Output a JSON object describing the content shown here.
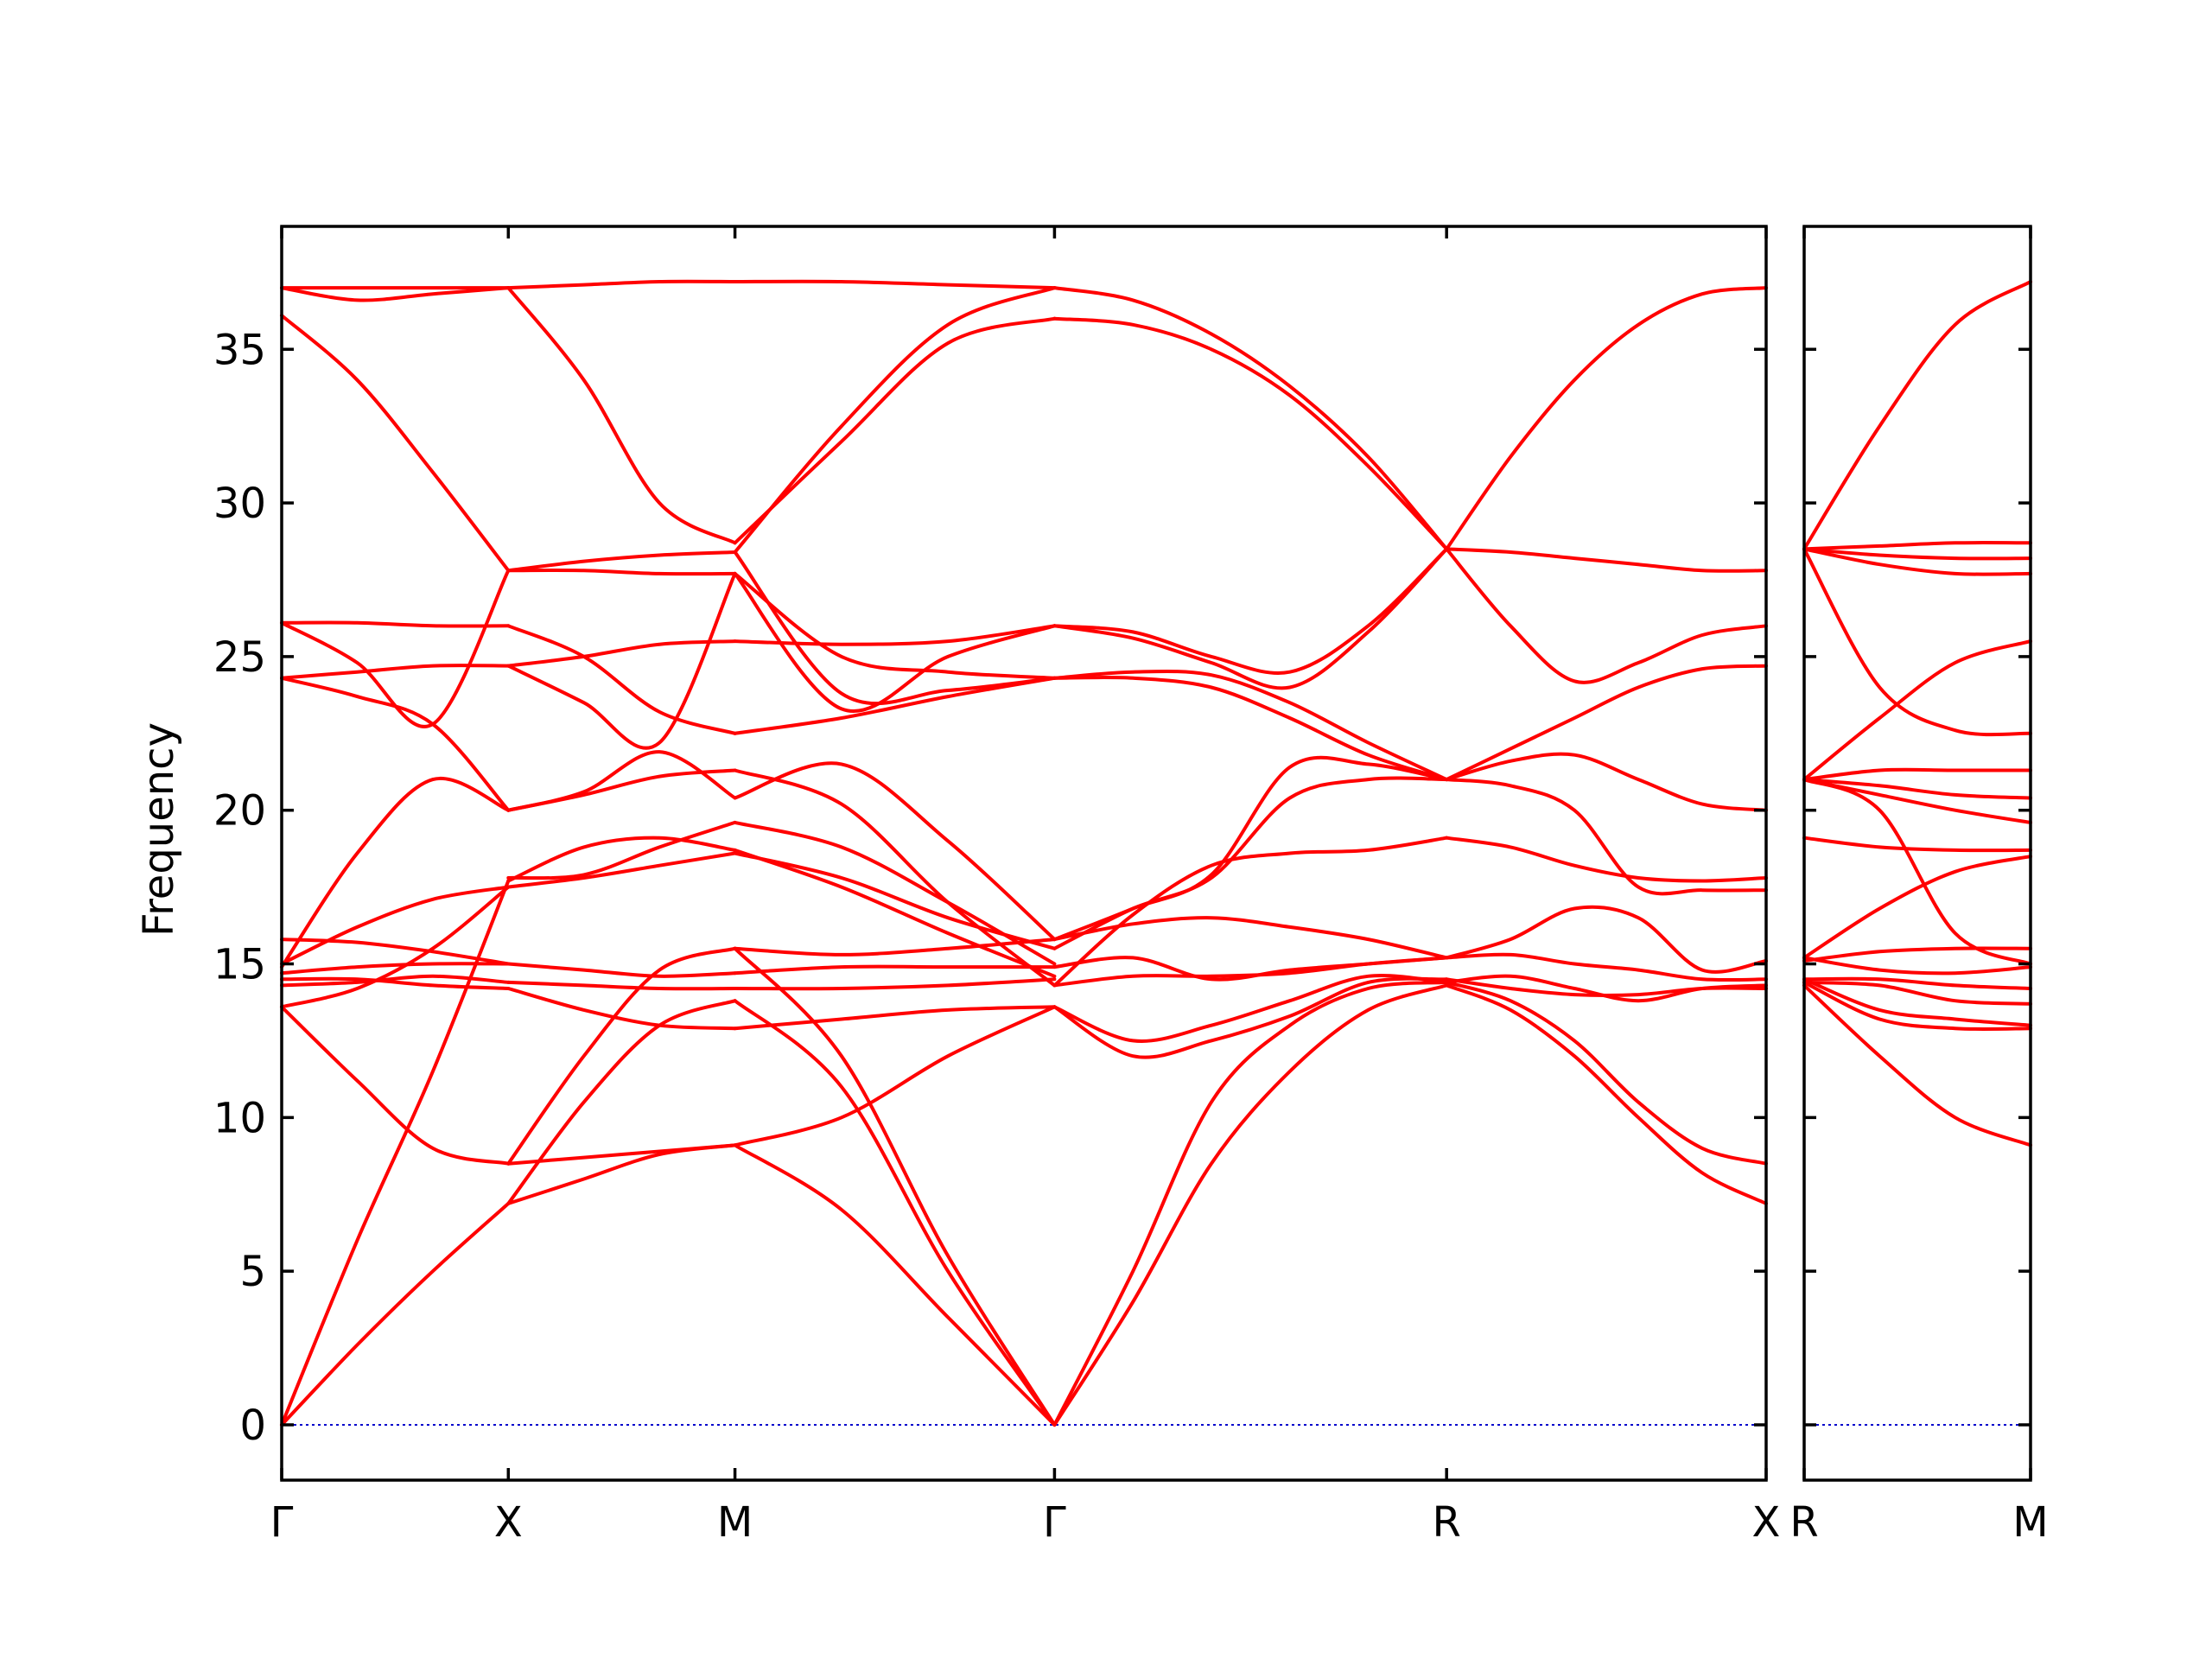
{
  "chart_data": {
    "type": "line",
    "ylabel": "Frequency",
    "ylim": [
      -1.8,
      39
    ],
    "yticks": [
      0,
      5,
      10,
      15,
      20,
      25,
      30,
      35
    ],
    "grid": false,
    "line_color": "#ff0000",
    "zero_line_color": "#0000cc",
    "panels": [
      {
        "id": "panel-main",
        "xticks": [
          {
            "x": 0,
            "label": "Γ"
          },
          {
            "x": 1.0,
            "label": "X"
          },
          {
            "x": 2.0,
            "label": "M"
          },
          {
            "x": 3.41,
            "label": "Γ"
          },
          {
            "x": 5.14,
            "label": "R"
          },
          {
            "x": 6.55,
            "label": "X"
          }
        ],
        "xlim": [
          0,
          6.55
        ],
        "segments": [
          {
            "x0": 0,
            "x1": 1.0,
            "bands": [
              [
                0,
                2.6,
                5.0,
                7.2
              ],
              [
                0,
                6.0,
                11.5,
                17.7
              ],
              [
                13.6,
                11.2,
                9.0,
                8.5
              ],
              [
                13.6,
                14.2,
                15.5,
                17.5
              ],
              [
                14.3,
                14.4,
                14.6,
                14.4
              ],
              [
                14.5,
                14.5,
                14.3,
                14.2
              ],
              [
                14.7,
                14.9,
                15.0,
                15.0
              ],
              [
                15.0,
                16.2,
                17.1,
                17.5
              ],
              [
                15.8,
                15.7,
                15.4,
                15.0
              ],
              [
                14.9,
                18.6,
                21.0,
                20.0
              ],
              [
                24.3,
                24.5,
                24.7,
                24.7
              ],
              [
                24.3,
                23.7,
                22.8,
                20.0
              ],
              [
                26.1,
                24.8,
                22.8,
                27.8
              ],
              [
                26.1,
                26.1,
                26.0,
                26.0
              ],
              [
                36.1,
                34.0,
                31.0,
                27.8
              ],
              [
                37.0,
                36.6,
                36.8,
                37.0
              ],
              [
                37.0,
                37.0,
                37.0,
                37.0
              ]
            ]
          },
          {
            "x0": 1.0,
            "x1": 2.0,
            "bands": [
              [
                7.2,
                8.0,
                8.8,
                9.1
              ],
              [
                7.2,
                10.5,
                13.0,
                13.8
              ],
              [
                8.5,
                8.7,
                8.9,
                9.1
              ],
              [
                8.5,
                12.0,
                14.8,
                15.5
              ],
              [
                14.4,
                14.3,
                14.2,
                14.2
              ],
              [
                14.2,
                13.5,
                13.0,
                12.9
              ],
              [
                15.0,
                14.8,
                14.6,
                14.7
              ],
              [
                17.5,
                17.8,
                18.2,
                18.6
              ],
              [
                17.7,
                18.8,
                19.1,
                18.7
              ],
              [
                17.8,
                17.9,
                18.8,
                19.6
              ],
              [
                20.0,
                20.6,
                21.9,
                20.4
              ],
              [
                20.0,
                20.5,
                21.1,
                21.3
              ],
              [
                24.7,
                23.5,
                22.2,
                27.7
              ],
              [
                26.0,
                25.0,
                23.2,
                22.5
              ],
              [
                24.7,
                25.0,
                25.4,
                25.5
              ],
              [
                27.8,
                28.1,
                28.3,
                28.4
              ],
              [
                27.8,
                27.8,
                27.7,
                27.7
              ],
              [
                37.0,
                34.0,
                30.0,
                28.7
              ],
              [
                37.0,
                37.1,
                37.2,
                37.2
              ]
            ]
          },
          {
            "x0": 2.0,
            "x1": 3.41,
            "bands": [
              [
                9.1,
                7.0,
                3.5,
                0
              ],
              [
                13.8,
                11.0,
                5.0,
                0
              ],
              [
                15.5,
                12.0,
                5.5,
                0
              ],
              [
                9.1,
                10.0,
                12.0,
                13.6
              ],
              [
                12.9,
                13.2,
                13.5,
                13.6
              ],
              [
                14.2,
                14.2,
                14.3,
                14.5
              ],
              [
                14.7,
                14.9,
                14.9,
                14.9
              ],
              [
                15.5,
                15.3,
                15.5,
                15.8
              ],
              [
                18.6,
                17.8,
                16.5,
                15.5
              ],
              [
                18.7,
                17.5,
                16.0,
                14.6
              ],
              [
                19.6,
                18.8,
                17.0,
                15.0
              ],
              [
                20.4,
                21.5,
                19.0,
                15.8
              ],
              [
                21.3,
                20.2,
                17.0,
                14.3
              ],
              [
                22.5,
                23.0,
                23.7,
                24.3
              ],
              [
                25.5,
                25.4,
                25.5,
                26.0
              ],
              [
                27.7,
                23.3,
                25.0,
                26.0
              ],
              [
                28.4,
                23.8,
                23.9,
                24.3
              ],
              [
                27.7,
                25.0,
                24.5,
                24.3
              ],
              [
                28.7,
                32.0,
                35.2,
                36.0
              ],
              [
                28.4,
                32.5,
                35.8,
                37.0
              ],
              [
                37.2,
                37.2,
                37.1,
                37.0
              ]
            ]
          },
          {
            "x0": 3.41,
            "x1": 5.14,
            "bands": [
              [
                0,
                4.0,
                8.5,
                11.5,
                13.5,
                14.3
              ],
              [
                0,
                5.0,
                10.5,
                13.0,
                14.2,
                14.4
              ],
              [
                13.6,
                12.0,
                12.5,
                13.3,
                14.4,
                14.5
              ],
              [
                13.6,
                12.5,
                13.0,
                13.8,
                14.6,
                14.4
              ],
              [
                14.3,
                14.6,
                14.6,
                14.7,
                15.0,
                15.2
              ],
              [
                14.9,
                15.2,
                14.5,
                14.8,
                15.0,
                15.2
              ],
              [
                15.8,
                16.3,
                16.5,
                16.2,
                15.8,
                15.2
              ],
              [
                14.3,
                16.6,
                18.2,
                18.6,
                18.7,
                19.1
              ],
              [
                15.5,
                16.8,
                17.8,
                20.4,
                21.0,
                21.0
              ],
              [
                15.8,
                16.8,
                17.9,
                21.4,
                21.5,
                21.0
              ],
              [
                24.3,
                24.3,
                24.0,
                23.0,
                21.8,
                21.0
              ],
              [
                24.3,
                24.5,
                24.4,
                23.5,
                22.2,
                21.0
              ],
              [
                26.0,
                25.8,
                25.0,
                24.5,
                26.0,
                28.5
              ],
              [
                26.0,
                25.6,
                24.8,
                24.0,
                25.8,
                28.5
              ],
              [
                36.0,
                35.8,
                35.0,
                33.5,
                31.2,
                28.5
              ],
              [
                37.0,
                36.6,
                35.5,
                33.8,
                31.5,
                28.5
              ]
            ]
          },
          {
            "x0": 5.14,
            "x1": 6.55,
            "bands": [
              [
                14.3,
                13.5,
                12.0,
                10.0,
                8.2,
                7.2
              ],
              [
                14.4,
                13.8,
                12.5,
                10.5,
                9.0,
                8.5
              ],
              [
                14.5,
                14.2,
                14.0,
                14.0,
                14.2,
                14.2
              ],
              [
                14.4,
                14.6,
                14.2,
                13.8,
                14.2,
                14.3
              ],
              [
                15.2,
                15.3,
                15.0,
                14.8,
                14.5,
                14.5
              ],
              [
                15.2,
                15.8,
                16.8,
                16.5,
                14.8,
                15.1
              ],
              [
                19.1,
                18.8,
                18.2,
                17.8,
                17.7,
                17.8
              ],
              [
                21.0,
                20.8,
                20.0,
                17.5,
                17.4,
                17.4
              ],
              [
                21.0,
                21.6,
                21.8,
                21.0,
                20.2,
                20.0
              ],
              [
                21.0,
                22.0,
                23.0,
                24.0,
                24.6,
                24.7
              ],
              [
                28.5,
                26.0,
                24.2,
                24.8,
                25.7,
                26.0
              ],
              [
                28.5,
                28.4,
                28.2,
                28.0,
                27.8,
                27.8
              ],
              [
                28.5,
                31.5,
                34.0,
                35.8,
                36.8,
                37.0
              ]
            ]
          }
        ]
      },
      {
        "id": "panel-right",
        "xticks": [
          {
            "x": 0,
            "label": "R"
          },
          {
            "x": 1.0,
            "label": "M"
          }
        ],
        "xlim": [
          0,
          1.0
        ],
        "segments": [
          {
            "x0": 0,
            "x1": 1.0,
            "bands": [
              [
                14.3,
                12.0,
                10.0,
                9.1
              ],
              [
                14.4,
                13.2,
                12.9,
                12.9
              ],
              [
                14.5,
                13.5,
                13.2,
                13.0
              ],
              [
                14.4,
                14.3,
                13.8,
                13.7
              ],
              [
                14.5,
                14.5,
                14.3,
                14.2
              ],
              [
                15.2,
                14.8,
                14.7,
                14.9
              ],
              [
                15.1,
                15.4,
                15.5,
                15.5
              ],
              [
                15.2,
                16.8,
                18.0,
                18.5
              ],
              [
                19.1,
                18.8,
                18.7,
                18.7
              ],
              [
                21.0,
                20.0,
                16.0,
                15.0
              ],
              [
                21.0,
                20.5,
                20.0,
                19.6
              ],
              [
                21.0,
                20.8,
                20.5,
                20.4
              ],
              [
                21.0,
                21.3,
                21.3,
                21.3
              ],
              [
                21.0,
                23.0,
                24.8,
                25.5
              ],
              [
                28.5,
                24.0,
                22.6,
                22.5
              ],
              [
                28.5,
                28.0,
                27.7,
                27.7
              ],
              [
                28.5,
                28.3,
                28.2,
                28.2
              ],
              [
                28.5,
                28.6,
                28.7,
                28.7
              ],
              [
                28.5,
                32.5,
                35.8,
                37.2
              ]
            ]
          }
        ]
      }
    ]
  }
}
